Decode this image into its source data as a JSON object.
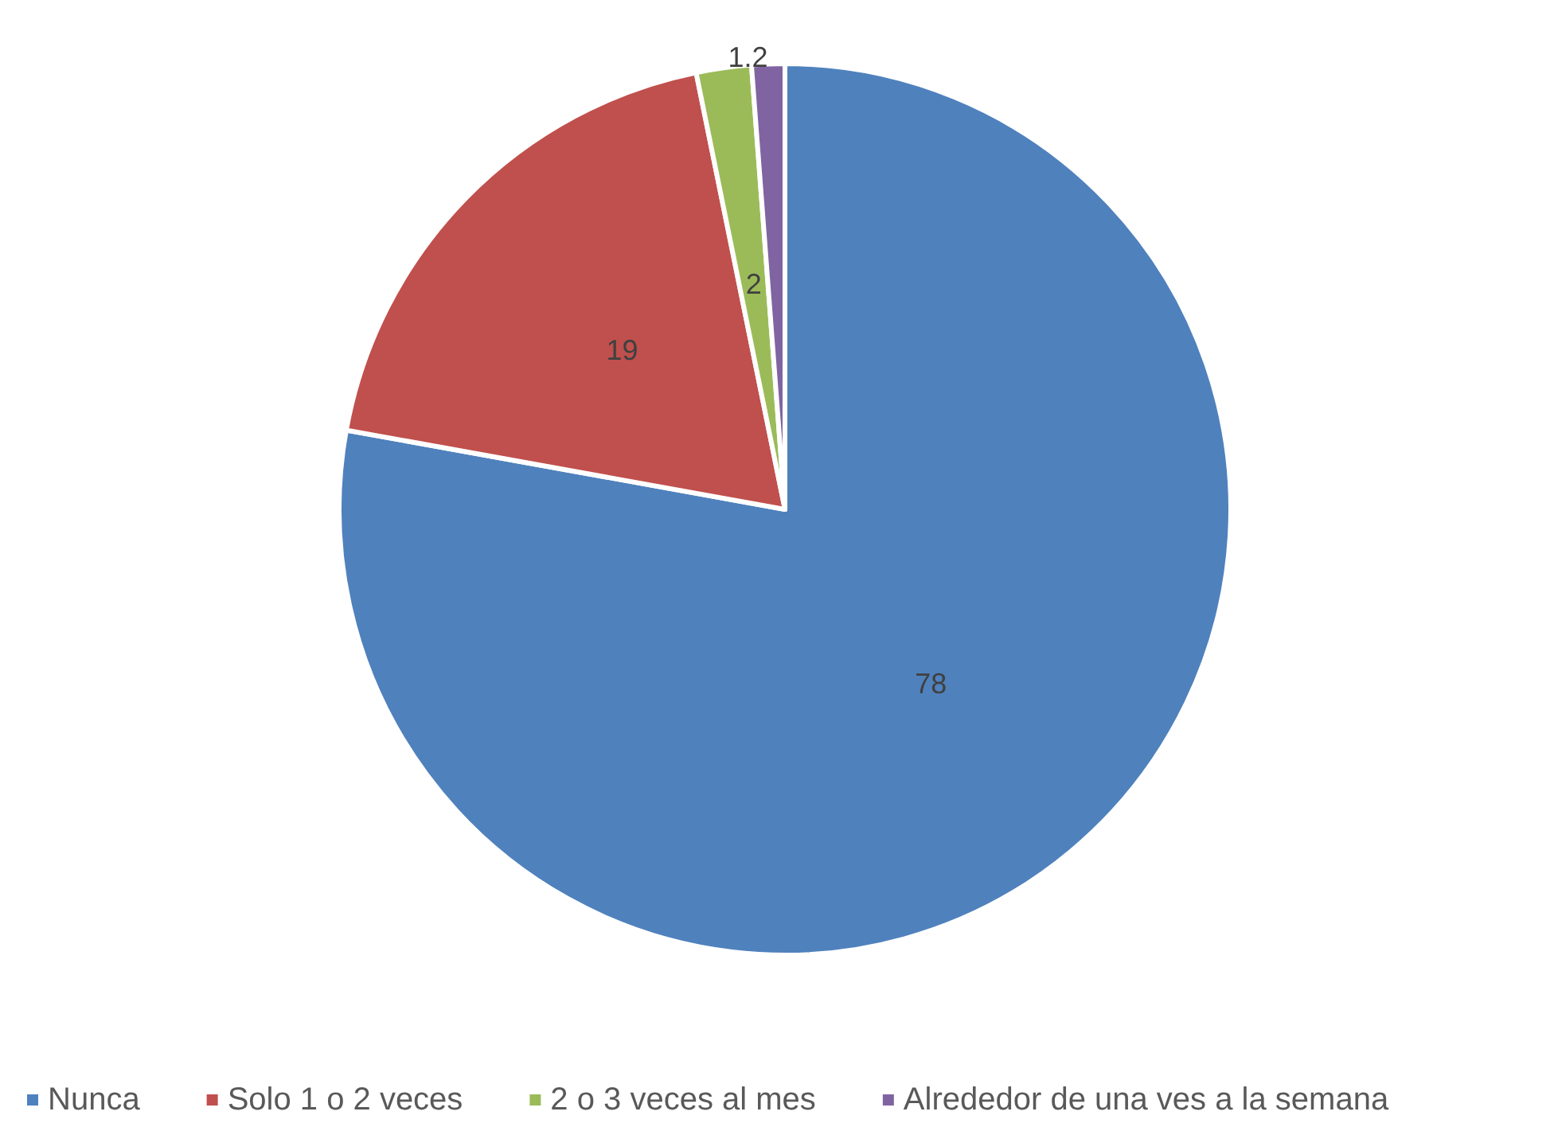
{
  "chart_data": {
    "type": "pie",
    "categories": [
      "Nunca",
      "Solo 1 o 2 veces",
      "2 o 3 veces al mes",
      "Alrededor de una ves a la semana"
    ],
    "values": [
      78,
      19,
      2,
      1.2
    ],
    "colors": [
      "#4f81bd",
      "#c0504d",
      "#9bbb59",
      "#8064a2"
    ],
    "data_labels": true,
    "legend": "bottom"
  }
}
